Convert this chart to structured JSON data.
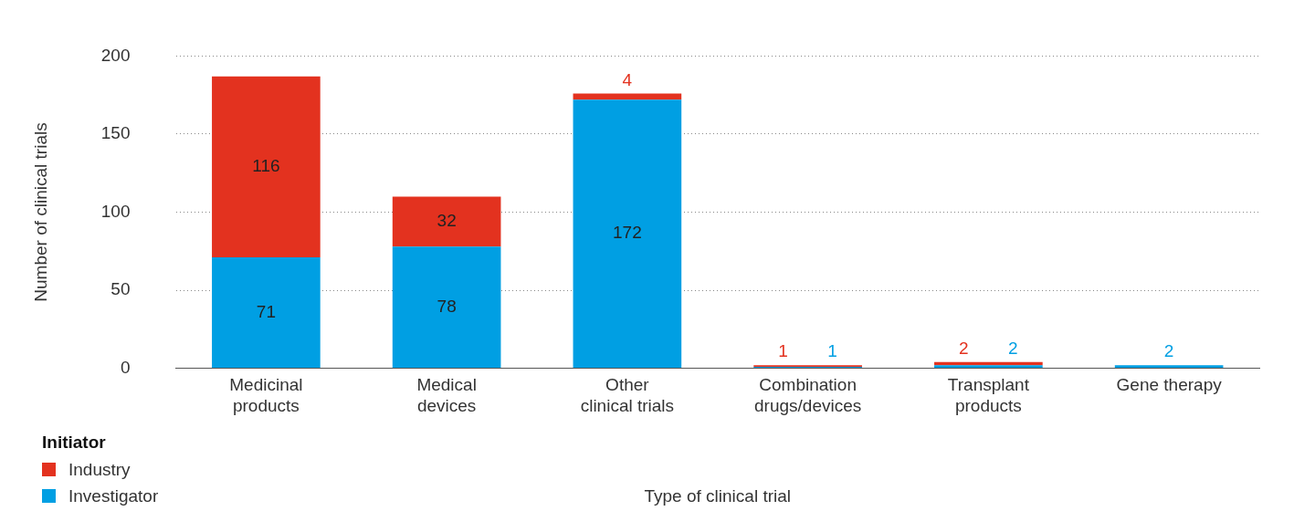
{
  "chart_data": {
    "type": "bar",
    "stacked": true,
    "xlabel": "Type of clinical trial",
    "ylabel": "Number of clinical trials",
    "legend_title": "Initiator",
    "legend": "bottom left",
    "grid": "y",
    "data_labels": true,
    "categories": [
      "Medicinal\nproducts",
      "Medical\ndevices",
      "Other\nclinical trials",
      "Combination\ndrugs/devices",
      "Transplant\nproducts",
      "Gene therapy"
    ],
    "ylim": [
      0,
      200
    ],
    "yticks": [
      0,
      50,
      100,
      150,
      200
    ],
    "series": [
      {
        "name": "Investigator",
        "color": "#009fe3",
        "values": [
          71,
          78,
          172,
          1,
          2,
          2
        ]
      },
      {
        "name": "Industry",
        "color": "#e3321f",
        "values": [
          116,
          32,
          4,
          1,
          2,
          null
        ]
      }
    ]
  }
}
